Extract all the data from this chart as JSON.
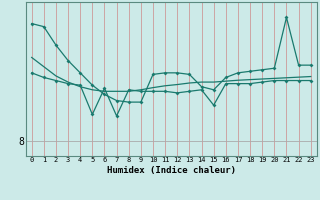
{
  "title": "",
  "xlabel": "Humidex (Indice chaleur)",
  "ylabel": "",
  "background_color": "#cceae8",
  "line_color": "#1a7a6e",
  "x": [
    0,
    1,
    2,
    3,
    4,
    5,
    6,
    7,
    8,
    9,
    10,
    11,
    12,
    13,
    14,
    15,
    16,
    17,
    18,
    19,
    20,
    21,
    22,
    23
  ],
  "y_top": [
    11.8,
    11.7,
    11.1,
    10.6,
    10.2,
    9.8,
    9.5,
    9.3,
    9.25,
    9.25,
    10.15,
    10.2,
    10.2,
    10.15,
    9.75,
    9.65,
    10.05,
    10.2,
    10.25,
    10.3,
    10.35,
    12.0,
    10.45,
    10.45
  ],
  "y_zigzag": [
    10.2,
    10.05,
    9.95,
    9.85,
    9.8,
    8.85,
    9.7,
    8.8,
    9.65,
    9.6,
    9.6,
    9.6,
    9.55,
    9.6,
    9.65,
    9.15,
    9.85,
    9.85,
    9.85,
    9.9,
    9.95,
    9.95,
    9.95,
    9.95
  ],
  "y_trend": [
    10.7,
    10.4,
    10.1,
    9.9,
    9.75,
    9.65,
    9.6,
    9.6,
    9.6,
    9.65,
    9.72,
    9.78,
    9.82,
    9.87,
    9.9,
    9.9,
    9.93,
    9.96,
    9.98,
    10.0,
    10.02,
    10.04,
    10.06,
    10.08
  ],
  "ytick_labels": [
    "8"
  ],
  "ytick_values": [
    8
  ],
  "xlim": [
    -0.5,
    23.5
  ],
  "ylim": [
    7.5,
    12.5
  ],
  "axvline_color": "#cc9999",
  "axhline_color": "#aaaaaa"
}
